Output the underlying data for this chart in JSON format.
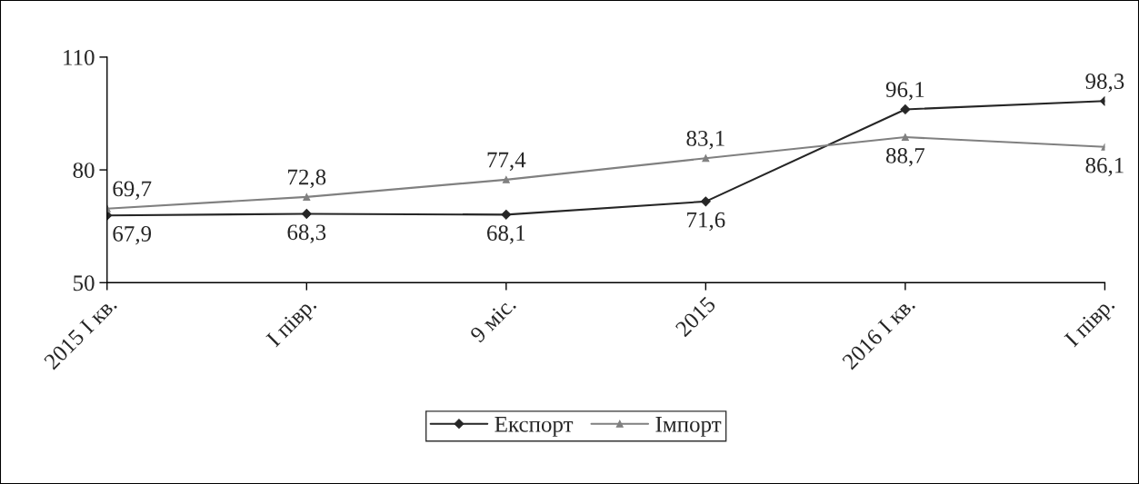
{
  "chart_data": {
    "type": "line",
    "categories": [
      "2015 I кв.",
      "I півр.",
      "9 міс.",
      "2015",
      "2016 I кв.",
      "I півр."
    ],
    "series": [
      {
        "name": "Експорт",
        "color": "#262626",
        "marker": "diamond",
        "values": [
          67.9,
          68.3,
          68.1,
          71.6,
          96.1,
          98.3
        ],
        "value_labels": [
          "67,9",
          "68,3",
          "68,1",
          "71,6",
          "96,1",
          "98,3"
        ]
      },
      {
        "name": "Імпорт",
        "color": "#808080",
        "marker": "triangle",
        "values": [
          69.7,
          72.8,
          77.4,
          83.1,
          88.7,
          86.1
        ],
        "value_labels": [
          "69,7",
          "72,8",
          "77,4",
          "83,1",
          "88,7",
          "86,1"
        ]
      }
    ],
    "ylim": [
      50,
      110
    ],
    "yticks": [
      50,
      80,
      110
    ],
    "grid": false,
    "legend": "bottom"
  }
}
